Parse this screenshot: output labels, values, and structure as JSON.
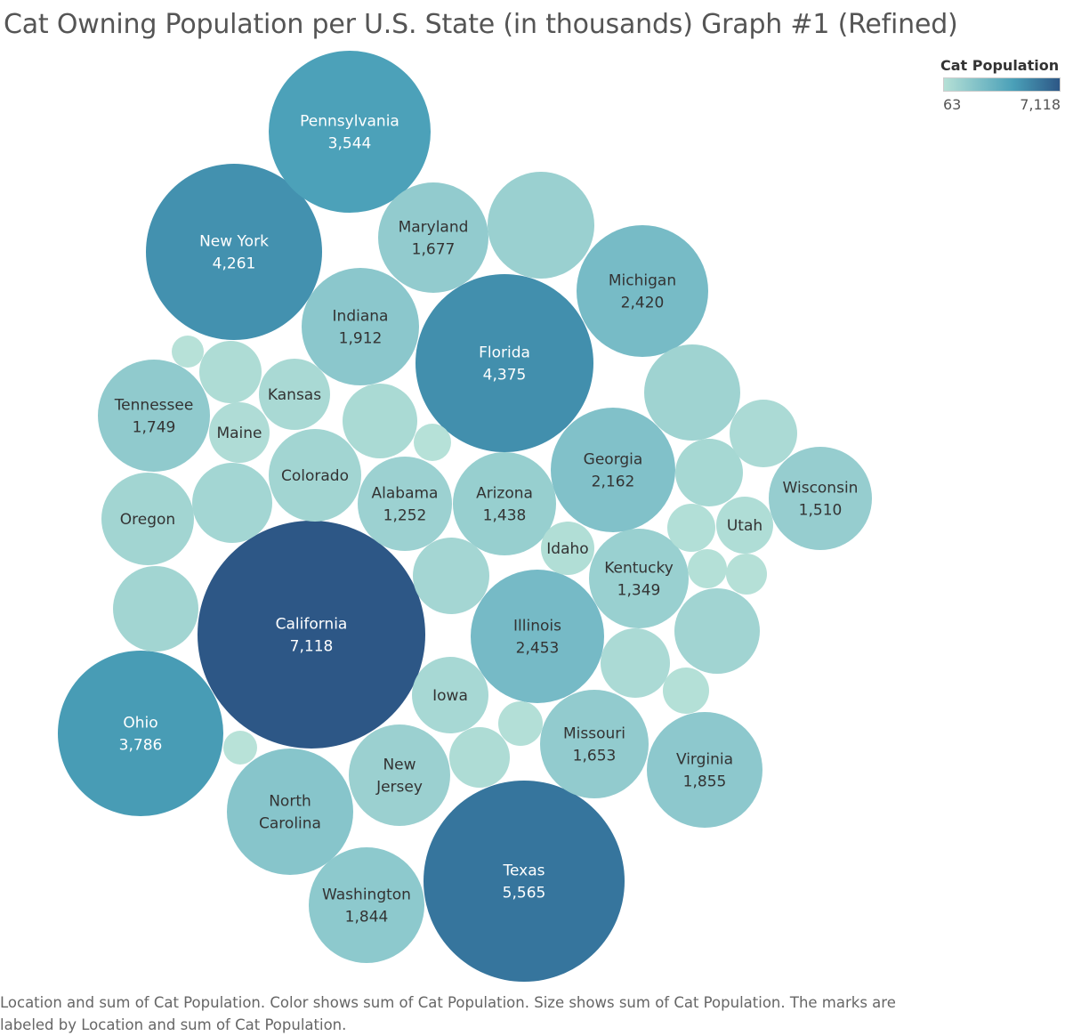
{
  "chart_data": {
    "type": "packed-bubble",
    "title": "Cat Owning Population per U.S. State (in thousands) Graph #1 (Refined)",
    "color_legend": {
      "title": "Cat Population",
      "min": 63,
      "max": 7118,
      "min_label": "63",
      "max_label": "7,118",
      "placement": "top-right",
      "color_low": "#b5e0d6",
      "color_mid": "#4aa0b8",
      "color_high": "#2d5786"
    },
    "caption": "Location and sum of Cat Population.  Color shows sum of Cat Population.  Size shows sum of Cat Population.  The marks are labeled by Location and sum of Cat Population.",
    "bubbles": [
      {
        "label": "California",
        "value": 7118,
        "value_label": "7,118"
      },
      {
        "label": "Texas",
        "value": 5565,
        "value_label": "5,565"
      },
      {
        "label": "Florida",
        "value": 4375,
        "value_label": "4,375"
      },
      {
        "label": "New York",
        "value": 4261,
        "value_label": "4,261"
      },
      {
        "label": "Ohio",
        "value": 3786,
        "value_label": "3,786"
      },
      {
        "label": "Pennsylvania",
        "value": 3544,
        "value_label": "3,544"
      },
      {
        "label": "Illinois",
        "value": 2453,
        "value_label": "2,453"
      },
      {
        "label": "Michigan",
        "value": 2420,
        "value_label": "2,420"
      },
      {
        "label": "Georgia",
        "value": 2162,
        "value_label": "2,162"
      },
      {
        "label": "North Carolina",
        "value": 2000,
        "value_label": ""
      },
      {
        "label": "Indiana",
        "value": 1912,
        "value_label": "1,912"
      },
      {
        "label": "Virginia",
        "value": 1855,
        "value_label": "1,855"
      },
      {
        "label": "Washington",
        "value": 1844,
        "value_label": "1,844"
      },
      {
        "label": "Tennessee",
        "value": 1749,
        "value_label": "1,749"
      },
      {
        "label": "Maryland",
        "value": 1677,
        "value_label": "1,677"
      },
      {
        "label": "Missouri",
        "value": 1653,
        "value_label": "1,653"
      },
      {
        "label": "Wisconsin",
        "value": 1510,
        "value_label": "1,510"
      },
      {
        "label": "Arizona",
        "value": 1438,
        "value_label": "1,438"
      },
      {
        "label": "Kentucky",
        "value": 1349,
        "value_label": "1,349"
      },
      {
        "label": "New Jersey",
        "value": 1300,
        "value_label": ""
      },
      {
        "label": "Alabama",
        "value": 1252,
        "value_label": "1,252"
      },
      {
        "label": "Colorado",
        "value": 1000,
        "value_label": ""
      },
      {
        "label": "Oregon",
        "value": 1000,
        "value_label": ""
      },
      {
        "label": "",
        "value": 1340,
        "value_label": ""
      },
      {
        "label": "",
        "value": 1120,
        "value_label": ""
      },
      {
        "label": "",
        "value": 1000,
        "value_label": ""
      },
      {
        "label": "",
        "value": 1020,
        "value_label": ""
      },
      {
        "label": "",
        "value": 940,
        "value_label": ""
      },
      {
        "label": "",
        "value": 900,
        "value_label": ""
      },
      {
        "label": "",
        "value": 800,
        "value_label": ""
      },
      {
        "label": "Iowa",
        "value": 780,
        "value_label": ""
      },
      {
        "label": "Kansas",
        "value": 700,
        "value_label": ""
      },
      {
        "label": "",
        "value": 660,
        "value_label": ""
      },
      {
        "label": "",
        "value": 620,
        "value_label": ""
      },
      {
        "label": "",
        "value": 620,
        "value_label": ""
      },
      {
        "label": "",
        "value": 500,
        "value_label": ""
      },
      {
        "label": "",
        "value": 480,
        "value_label": ""
      },
      {
        "label": "Maine",
        "value": 460,
        "value_label": ""
      },
      {
        "label": "Utah",
        "value": 420,
        "value_label": ""
      },
      {
        "label": "Idaho",
        "value": 370,
        "value_label": ""
      },
      {
        "label": "",
        "value": 300,
        "value_label": ""
      },
      {
        "label": "",
        "value": 280,
        "value_label": ""
      },
      {
        "label": "",
        "value": 230,
        "value_label": ""
      },
      {
        "label": "",
        "value": 210,
        "value_label": ""
      },
      {
        "label": "",
        "value": 180,
        "value_label": ""
      },
      {
        "label": "",
        "value": 140,
        "value_label": ""
      },
      {
        "label": "",
        "value": 125,
        "value_label": ""
      },
      {
        "label": "",
        "value": 63,
        "value_label": ""
      }
    ]
  }
}
